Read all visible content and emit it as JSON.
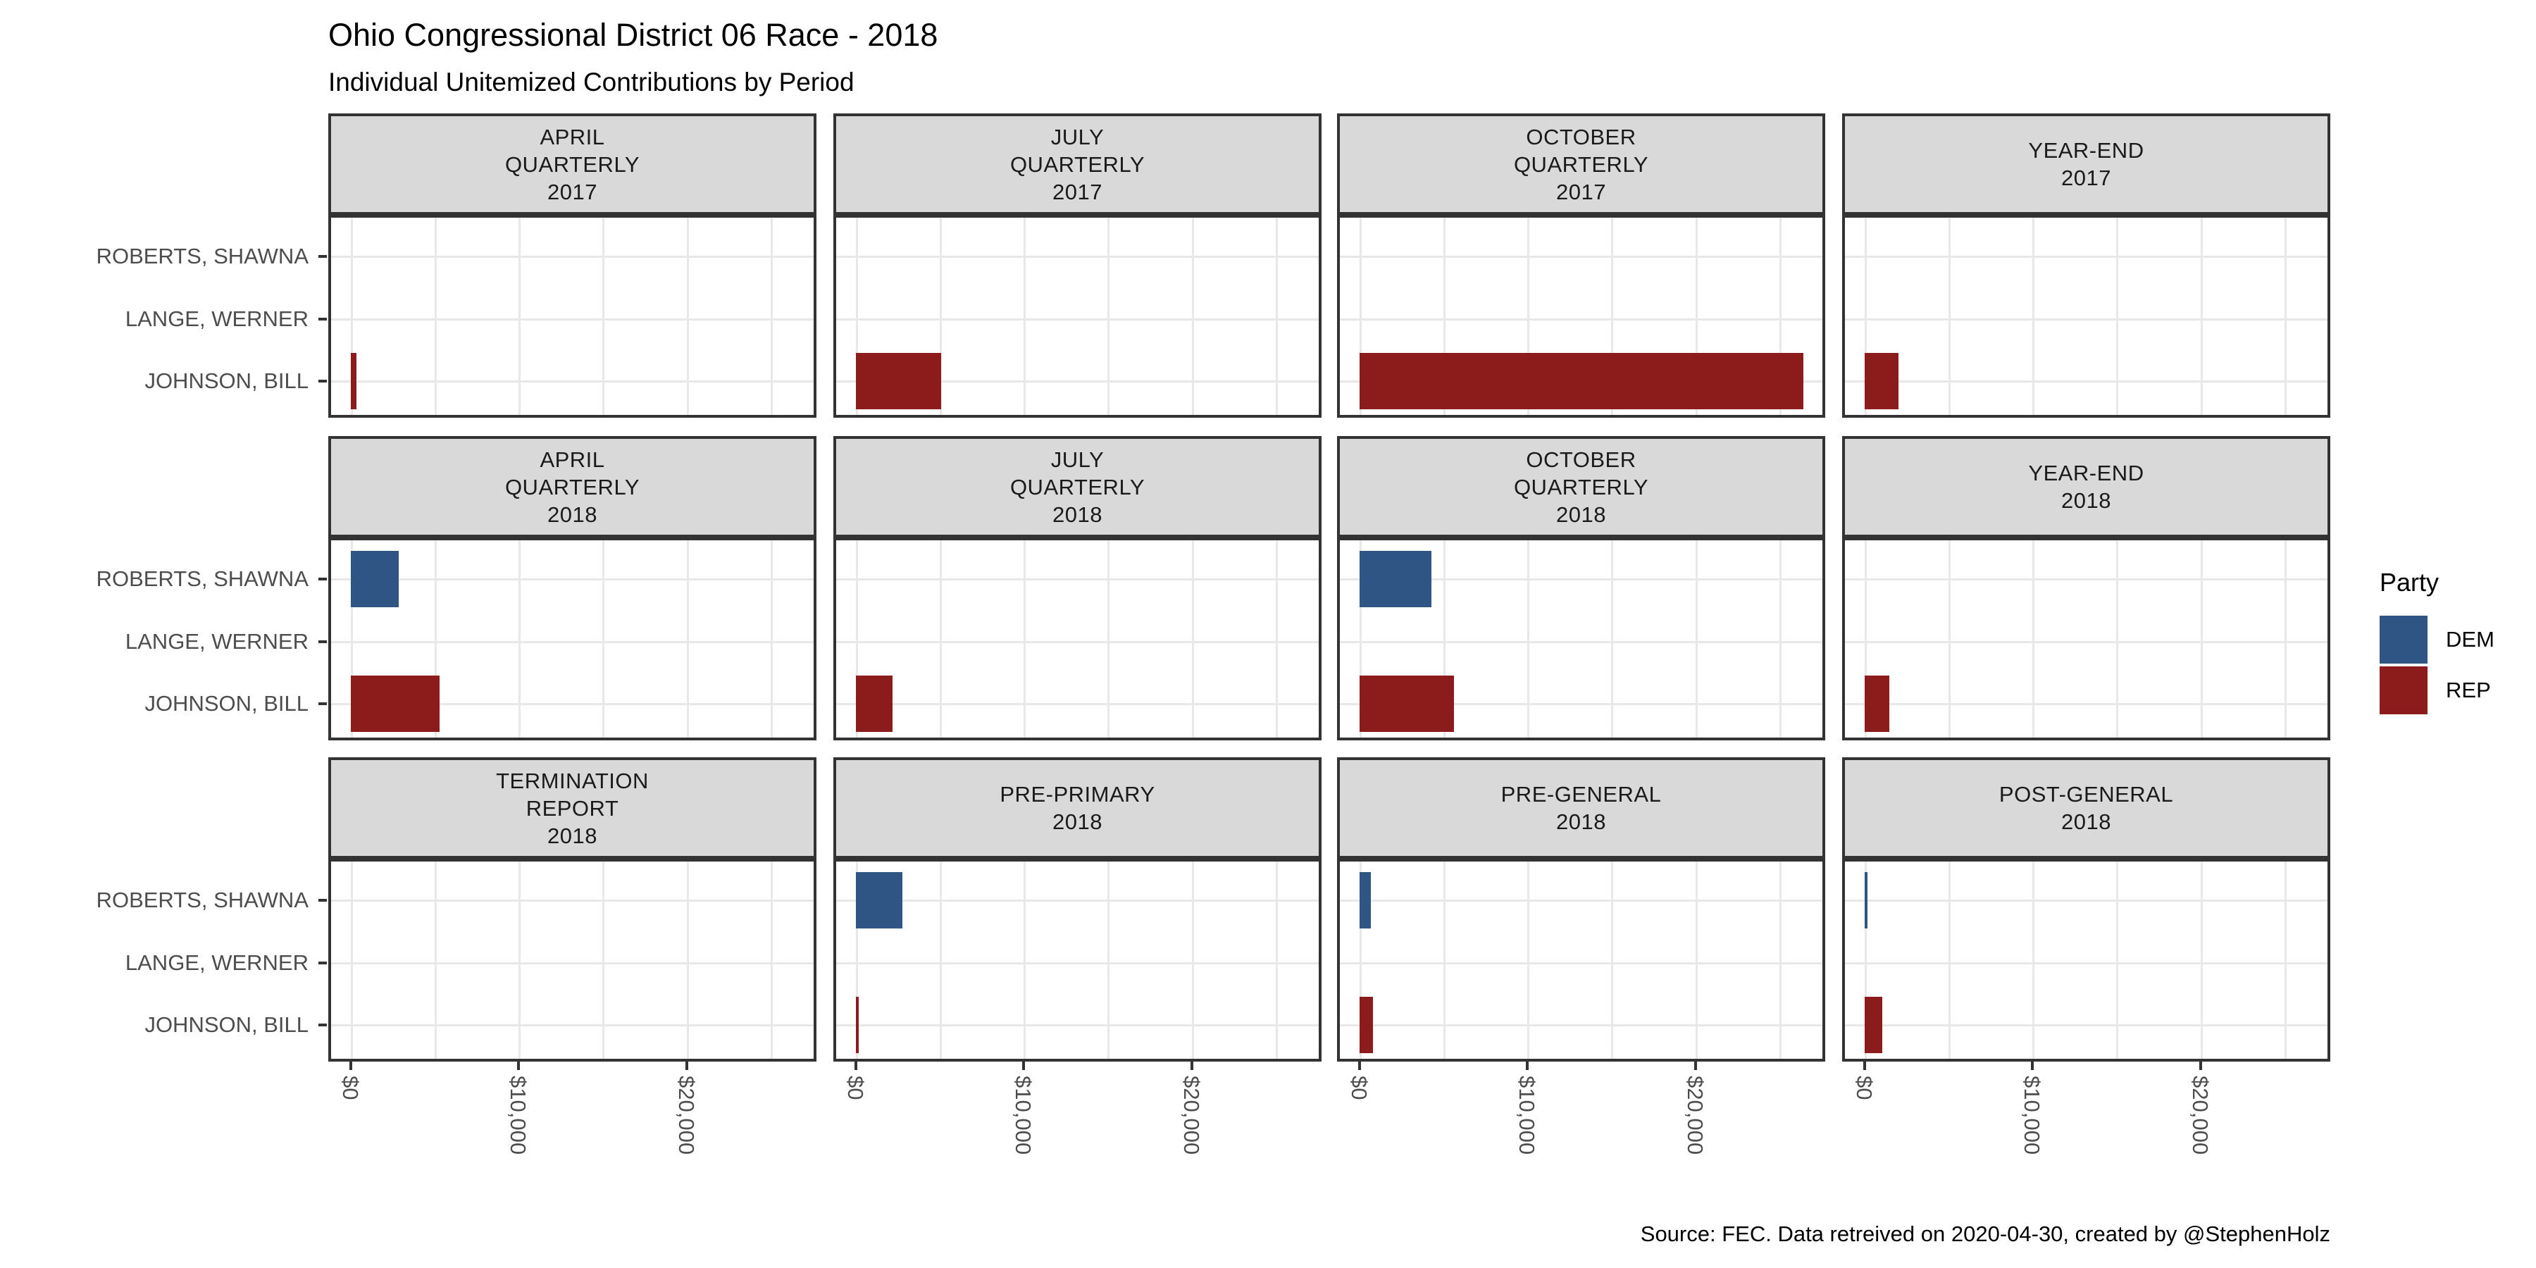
{
  "title": "Ohio Congressional District 06 Race - 2018",
  "subtitle": "Individual Unitemized Contributions by Period",
  "caption": "Source: FEC. Data retreived on 2020-04-30, created by @StephenHolz",
  "colors": {
    "dem": "#2E5584",
    "rep": "#8C1B1B",
    "facet_header_fill": "#D9D9D9",
    "panel_border": "#333333",
    "gridline": "#E8E8E8",
    "axis_text": "#4D4D4D"
  },
  "legend": {
    "title": "Party",
    "entries": [
      {
        "label": "DEM",
        "color": "#2E5584"
      },
      {
        "label": "REP",
        "color": "#8C1B1B"
      }
    ]
  },
  "chart_data": {
    "type": "bar",
    "orientation": "horizontal",
    "title": "Ohio Congressional District 06 Race - 2018",
    "subtitle": "Individual Unitemized Contributions by Period",
    "facet_layout": {
      "rows": 3,
      "cols": 4
    },
    "y_categories": [
      "ROBERTS, SHAWNA",
      "LANGE, WERNER",
      "JOHNSON, BILL"
    ],
    "x_axis": {
      "tick_labels": [
        "$0",
        "$10,000",
        "$20,000"
      ],
      "tick_values": [
        0,
        10000,
        20000
      ],
      "minor_tick_values": [
        5000,
        15000,
        25000
      ],
      "range": [
        -1320,
        27720
      ],
      "unit": "USD"
    },
    "grid": true,
    "legend_position": "right",
    "facets": [
      {
        "label_lines": [
          "APRIL",
          "QUARTERLY",
          "2017"
        ],
        "bars": [
          {
            "candidate": "JOHNSON, BILL",
            "party": "REP",
            "value": 350
          }
        ]
      },
      {
        "label_lines": [
          "JULY",
          "QUARTERLY",
          "2017"
        ],
        "bars": [
          {
            "candidate": "JOHNSON, BILL",
            "party": "REP",
            "value": 5100
          }
        ]
      },
      {
        "label_lines": [
          "OCTOBER",
          "QUARTERLY",
          "2017"
        ],
        "bars": [
          {
            "candidate": "JOHNSON, BILL",
            "party": "REP",
            "value": 26400
          }
        ]
      },
      {
        "label_lines": [
          "YEAR-END",
          "2017"
        ],
        "bars": [
          {
            "candidate": "JOHNSON, BILL",
            "party": "REP",
            "value": 2050
          }
        ]
      },
      {
        "label_lines": [
          "APRIL",
          "QUARTERLY",
          "2018"
        ],
        "bars": [
          {
            "candidate": "ROBERTS, SHAWNA",
            "party": "DEM",
            "value": 2850
          },
          {
            "candidate": "JOHNSON, BILL",
            "party": "REP",
            "value": 5280
          }
        ]
      },
      {
        "label_lines": [
          "JULY",
          "QUARTERLY",
          "2018"
        ],
        "bars": [
          {
            "candidate": "JOHNSON, BILL",
            "party": "REP",
            "value": 2200
          }
        ]
      },
      {
        "label_lines": [
          "OCTOBER",
          "QUARTERLY",
          "2018"
        ],
        "bars": [
          {
            "candidate": "ROBERTS, SHAWNA",
            "party": "DEM",
            "value": 4300
          },
          {
            "candidate": "JOHNSON, BILL",
            "party": "REP",
            "value": 5650
          }
        ]
      },
      {
        "label_lines": [
          "YEAR-END",
          "2018"
        ],
        "bars": [
          {
            "candidate": "JOHNSON, BILL",
            "party": "REP",
            "value": 1470
          }
        ]
      },
      {
        "label_lines": [
          "TERMINATION",
          "REPORT",
          "2018"
        ],
        "bars": []
      },
      {
        "label_lines": [
          "PRE-PRIMARY",
          "2018"
        ],
        "bars": [
          {
            "candidate": "ROBERTS, SHAWNA",
            "party": "DEM",
            "value": 2800
          },
          {
            "candidate": "JOHNSON, BILL",
            "party": "REP",
            "value": 200
          }
        ]
      },
      {
        "label_lines": [
          "PRE-GENERAL",
          "2018"
        ],
        "bars": [
          {
            "candidate": "ROBERTS, SHAWNA",
            "party": "DEM",
            "value": 700
          },
          {
            "candidate": "JOHNSON, BILL",
            "party": "REP",
            "value": 800
          }
        ]
      },
      {
        "label_lines": [
          "POST-GENERAL",
          "2018"
        ],
        "bars": [
          {
            "candidate": "ROBERTS, SHAWNA",
            "party": "DEM",
            "value": 200
          },
          {
            "candidate": "JOHNSON, BILL",
            "party": "REP",
            "value": 1050
          }
        ]
      }
    ]
  }
}
